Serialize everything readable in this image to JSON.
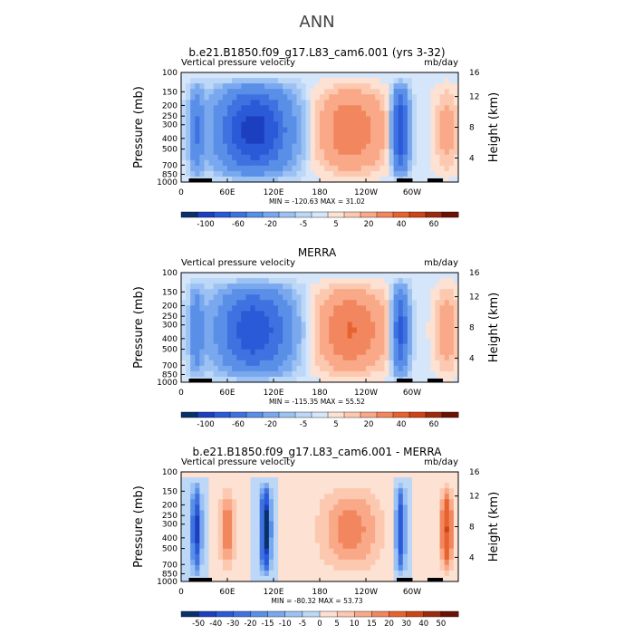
{
  "figure_title": "ANN",
  "chart_data": [
    {
      "type": "heatmap",
      "title": "b.e21.B1850.f09_g17.L83_cam6.001 (yrs 3-32)",
      "variable_label": "Vertical pressure velocity",
      "units": "mb/day",
      "ylabel": "Pressure (mb)",
      "ylabel_right": "Height (km)",
      "x_ticks": [
        "0",
        "60E",
        "120E",
        "180",
        "120W",
        "60W"
      ],
      "y_ticks": [
        "100",
        "150",
        "200",
        "250",
        "300",
        "400",
        "500",
        "700",
        "850",
        "1000"
      ],
      "y2_ticks": [
        "16",
        "12",
        "8",
        "4"
      ],
      "stats": "MIN = -120.63   MAX =   31.02",
      "colorbar_labels": [
        "-100",
        "-60",
        "-20",
        "-5",
        "5",
        "20",
        "40",
        "60"
      ],
      "colorbar_colors": [
        "#08306b",
        "#1c3fbf",
        "#2a5ad8",
        "#3f72e0",
        "#5a8fe8",
        "#7aa8ee",
        "#9cc2f3",
        "#bdd7f7",
        "#d6e6fa",
        "#fde1d2",
        "#fcc9b0",
        "#f9a988",
        "#f2865f",
        "#e6632f",
        "#cc4417",
        "#9c2a0c",
        "#6b1204"
      ],
      "xlim": [
        0,
        360
      ],
      "ylim_mb": [
        1000,
        100
      ],
      "grid": false,
      "cells": [
        [
          20,
          2,
          1,
          0
        ],
        [
          20,
          7,
          4,
          1
        ],
        [
          20,
          9,
          5,
          2
        ],
        [
          20,
          13,
          6,
          4
        ],
        [
          20,
          24,
          6,
          6
        ],
        [
          35,
          2,
          1,
          0
        ],
        [
          35,
          7,
          5,
          2
        ],
        [
          35,
          9,
          6,
          2
        ],
        [
          35,
          13,
          7,
          5
        ],
        [
          35,
          24,
          7,
          6
        ],
        [
          52,
          2,
          1,
          0
        ],
        [
          52,
          7,
          4,
          1
        ],
        [
          52,
          9,
          4,
          1
        ],
        [
          52,
          13,
          6,
          4
        ],
        [
          52,
          24,
          7,
          6
        ],
        [
          72,
          2,
          1,
          0
        ],
        [
          72,
          7,
          4,
          1
        ],
        [
          72,
          9,
          4,
          1
        ],
        [
          72,
          13,
          6,
          4
        ],
        [
          72,
          24,
          7,
          6
        ],
        [
          92,
          2,
          1,
          0
        ],
        [
          92,
          7,
          4,
          1
        ],
        [
          92,
          9,
          4,
          1
        ],
        [
          92,
          13,
          6,
          4
        ],
        [
          92,
          24,
          7,
          6
        ],
        [
          112,
          2,
          1,
          0
        ],
        [
          112,
          7,
          4,
          1
        ],
        [
          112,
          9,
          4,
          2
        ],
        [
          112,
          13,
          5,
          4
        ],
        [
          112,
          24,
          6,
          5
        ],
        [
          132,
          2,
          1,
          0
        ],
        [
          132,
          7,
          5,
          2
        ],
        [
          132,
          9,
          5,
          2
        ],
        [
          132,
          13,
          6,
          5
        ],
        [
          132,
          24,
          7,
          6
        ],
        [
          155,
          2,
          1,
          0
        ],
        [
          155,
          7,
          6,
          3
        ],
        [
          155,
          9,
          7,
          5
        ],
        [
          155,
          13,
          8,
          6
        ],
        [
          155,
          24,
          8,
          7
        ],
        [
          180,
          2,
          9,
          8
        ],
        [
          180,
          7,
          10,
          9
        ],
        [
          180,
          9,
          10,
          9
        ],
        [
          180,
          13,
          11,
          10
        ],
        [
          180,
          24,
          12,
          11
        ],
        [
          210,
          2,
          10,
          9
        ],
        [
          210,
          7,
          11,
          10
        ],
        [
          210,
          9,
          11,
          10
        ],
        [
          210,
          13,
          12,
          11
        ],
        [
          210,
          24,
          12,
          12
        ],
        [
          240,
          2,
          10,
          9
        ],
        [
          240,
          7,
          11,
          10
        ],
        [
          240,
          9,
          11,
          10
        ],
        [
          240,
          13,
          12,
          11
        ],
        [
          240,
          24,
          12,
          12
        ],
        [
          268,
          2,
          9,
          8
        ],
        [
          268,
          7,
          10,
          9
        ],
        [
          268,
          9,
          10,
          9
        ],
        [
          268,
          13,
          11,
          10
        ],
        [
          268,
          24,
          12,
          11
        ],
        [
          290,
          2,
          1,
          0
        ],
        [
          290,
          7,
          4,
          1
        ],
        [
          290,
          9,
          5,
          1
        ],
        [
          290,
          13,
          6,
          4
        ],
        [
          290,
          24,
          7,
          6
        ],
        [
          315,
          2,
          1,
          0
        ],
        [
          315,
          7,
          5,
          2
        ],
        [
          315,
          9,
          6,
          3
        ],
        [
          315,
          13,
          7,
          5
        ],
        [
          315,
          24,
          7,
          6
        ],
        [
          340,
          2,
          9,
          8
        ],
        [
          340,
          7,
          10,
          9
        ],
        [
          340,
          9,
          10,
          9
        ],
        [
          340,
          13,
          10,
          10
        ],
        [
          340,
          24,
          10,
          10
        ],
        [
          360,
          2,
          9,
          8
        ],
        [
          360,
          7,
          10,
          9
        ],
        [
          360,
          9,
          10,
          9
        ],
        [
          360,
          13,
          10,
          10
        ],
        [
          360,
          24,
          10,
          10
        ]
      ]
    },
    {
      "type": "heatmap",
      "title": "MERRA",
      "variable_label": "Vertical pressure velocity",
      "units": "mb/day",
      "ylabel": "Pressure (mb)",
      "ylabel_right": "Height (km)",
      "x_ticks": [
        "0",
        "60E",
        "120E",
        "180",
        "120W",
        "60W"
      ],
      "y_ticks": [
        "100",
        "150",
        "200",
        "250",
        "300",
        "400",
        "500",
        "700",
        "850",
        "1000"
      ],
      "y2_ticks": [
        "16",
        "12",
        "8",
        "4"
      ],
      "stats": "MIN = -115.35   MAX =   55.52",
      "colorbar_labels": [
        "-100",
        "-60",
        "-20",
        "-5",
        "5",
        "20",
        "40",
        "60"
      ],
      "colorbar_colors": [
        "#08306b",
        "#1c3fbf",
        "#2a5ad8",
        "#3f72e0",
        "#5a8fe8",
        "#7aa8ee",
        "#9cc2f3",
        "#bdd7f7",
        "#d6e6fa",
        "#fde1d2",
        "#fcc9b0",
        "#f9a988",
        "#f2865f",
        "#e6632f",
        "#cc4417",
        "#9c2a0c",
        "#6b1204"
      ],
      "xlim": [
        0,
        360
      ],
      "ylim_mb": [
        1000,
        100
      ]
    },
    {
      "type": "heatmap",
      "title": "b.e21.B1850.f09_g17.L83_cam6.001 - MERRA",
      "variable_label": "Vertical pressure velocity",
      "units": "mb/day",
      "ylabel": "Pressure (mb)",
      "ylabel_right": "Height (km)",
      "x_ticks": [
        "0",
        "60E",
        "120E",
        "180",
        "120W",
        "60W"
      ],
      "y_ticks": [
        "100",
        "150",
        "200",
        "250",
        "300",
        "400",
        "500",
        "700",
        "850",
        "1000"
      ],
      "y2_ticks": [
        "16",
        "12",
        "8",
        "4"
      ],
      "stats": "MIN =  -80.32   MAX =   53.73",
      "colorbar_labels": [
        "-50",
        "-40",
        "-30",
        "-20",
        "-15",
        "-10",
        "-5",
        "0",
        "5",
        "10",
        "15",
        "20",
        "30",
        "40",
        "50"
      ],
      "colorbar_colors": [
        "#08306b",
        "#1c3fbf",
        "#2a5ad8",
        "#3f72e0",
        "#5a8fe8",
        "#7aa8ee",
        "#9cc2f3",
        "#bdd7f7",
        "#fde1d2",
        "#fcc9b0",
        "#f9a988",
        "#f2865f",
        "#e6632f",
        "#cc4417",
        "#9c2a0c",
        "#6b1204"
      ],
      "xlim": [
        0,
        360
      ],
      "ylim_mb": [
        1000,
        100
      ]
    }
  ]
}
